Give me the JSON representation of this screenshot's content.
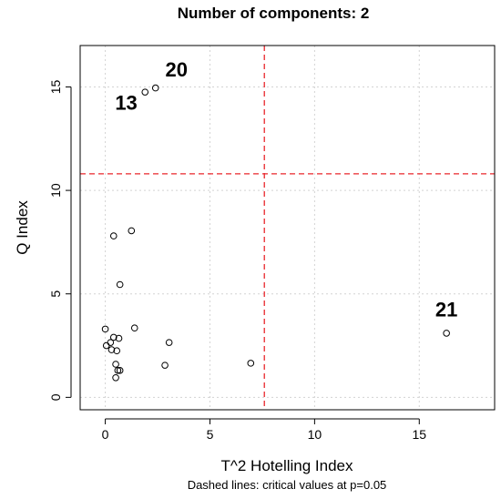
{
  "chart_data": {
    "type": "scatter",
    "title": "Number of components: 2",
    "xlabel": "T^2 Hotelling Index",
    "ylabel": "Q Index",
    "caption": "Dashed lines: critical values at p=0.05",
    "xlim": [
      -1.2,
      18.6
    ],
    "ylim": [
      -0.6,
      17.0
    ],
    "xticks": [
      0,
      5,
      10,
      15
    ],
    "yticks": [
      0,
      5,
      10,
      15
    ],
    "grid": true,
    "critical_values": {
      "x": 7.6,
      "y": 10.8
    },
    "critical_line_color": "#e8262b",
    "grid_color": "#d3d3d3",
    "points": [
      {
        "x": 1.9,
        "y": 14.75
      },
      {
        "x": 2.4,
        "y": 14.95
      },
      {
        "x": 1.25,
        "y": 8.05
      },
      {
        "x": 0.4,
        "y": 7.8
      },
      {
        "x": 0.7,
        "y": 5.45
      },
      {
        "x": 1.4,
        "y": 3.35
      },
      {
        "x": 0.0,
        "y": 3.3
      },
      {
        "x": 0.4,
        "y": 2.9
      },
      {
        "x": 0.65,
        "y": 2.85
      },
      {
        "x": 0.25,
        "y": 2.65
      },
      {
        "x": 0.05,
        "y": 2.5
      },
      {
        "x": 0.3,
        "y": 2.3
      },
      {
        "x": 0.55,
        "y": 2.25
      },
      {
        "x": 3.05,
        "y": 2.65
      },
      {
        "x": 0.5,
        "y": 1.6
      },
      {
        "x": 0.6,
        "y": 1.3
      },
      {
        "x": 0.7,
        "y": 1.3
      },
      {
        "x": 0.5,
        "y": 0.95
      },
      {
        "x": 2.85,
        "y": 1.55
      },
      {
        "x": 6.95,
        "y": 1.65
      },
      {
        "x": 16.3,
        "y": 3.1
      }
    ],
    "annotations": [
      {
        "text": "20",
        "x": 3.4,
        "y": 15.5
      },
      {
        "text": "13",
        "x": 1.0,
        "y": 13.9
      },
      {
        "text": "21",
        "x": 16.3,
        "y": 3.9
      }
    ]
  }
}
